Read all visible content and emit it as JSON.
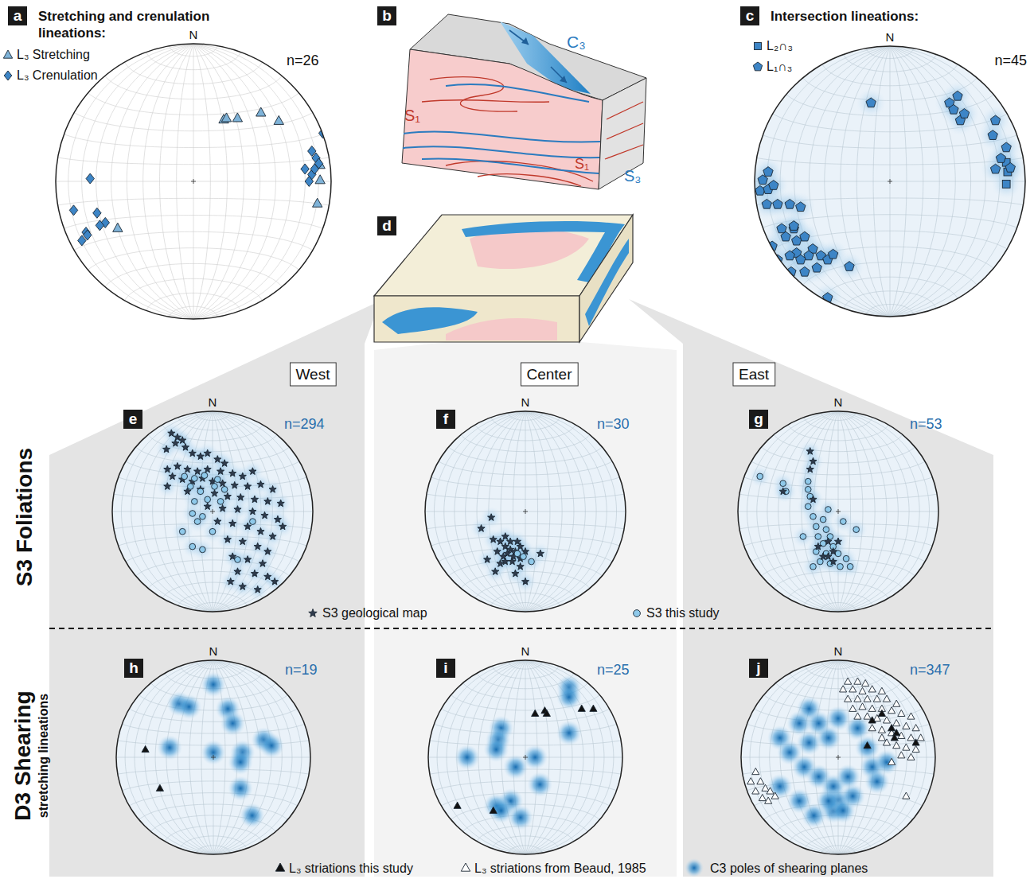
{
  "figure": {
    "rows": [
      {
        "label": "S3 Foliations"
      },
      {
        "label": "D3 Shearing",
        "sublabel": "stretching lineations"
      }
    ],
    "columns": [
      "West",
      "Center",
      "East"
    ],
    "legend_s3": [
      {
        "label": "S3 geological map",
        "marker": "star",
        "color": "#2f3b4c"
      },
      {
        "label": "S3 this study",
        "marker": "circle",
        "color": "#8fc9ea"
      }
    ],
    "legend_d3": [
      {
        "label": "L₃ striations this study",
        "marker": "triangle",
        "color": "#111111"
      },
      {
        "label": "L₃ striations from Beaud, 1985",
        "marker": "triangle",
        "color": "#ffffff"
      },
      {
        "label": "C3 poles of shearing planes",
        "marker": "density",
        "color": "#1f7fc4"
      }
    ]
  },
  "diagrams": {
    "b": {
      "letter": "b",
      "labels": {
        "c3": "C₃",
        "s1_top": "S₁",
        "s3": "S₃",
        "s1_bottom": "S₁"
      }
    },
    "d": {
      "letter": "d"
    }
  },
  "chart_data": [
    {
      "type": "scatter",
      "letter": "a",
      "title": "Stretching and crenulation lineations:",
      "north": "N",
      "n_label": "n=26",
      "xlim": [
        -1,
        1
      ],
      "ylim": [
        -1,
        1
      ],
      "tick_labels": false,
      "grid": true,
      "legend": "top-left",
      "series": [
        {
          "name": "L₃ Stretching",
          "marker": "triangle",
          "color": "#7fb3d8",
          "x": [
            0.22,
            0.24,
            0.32,
            0.49,
            0.62,
            0.92,
            0.92,
            0.9,
            -0.55
          ],
          "y": [
            0.45,
            0.46,
            0.46,
            0.5,
            0.44,
            0.12,
            0.01,
            -0.16,
            -0.34
          ]
        },
        {
          "name": "L₃ Crenulation",
          "marker": "diamond",
          "color": "#3d85c6",
          "x": [
            0.94,
            0.86,
            0.89,
            0.91,
            0.81,
            0.86,
            0.84,
            0.88,
            -0.75,
            -0.87,
            -0.7,
            -0.64,
            -0.68,
            -0.78,
            -0.81,
            -0.77
          ],
          "y": [
            0.35,
            0.22,
            0.17,
            0.13,
            0.09,
            0.05,
            0.0,
            0.09,
            0.02,
            -0.21,
            -0.23,
            -0.3,
            -0.32,
            -0.37,
            -0.43,
            -0.39
          ]
        }
      ]
    },
    {
      "type": "scatter",
      "letter": "c",
      "title": "Intersection lineations:",
      "north": "N",
      "n_label": "n=45",
      "xlim": [
        -1,
        1
      ],
      "ylim": [
        -1,
        1
      ],
      "tick_labels": false,
      "grid": true,
      "legend": "top-left",
      "series": [
        {
          "name": "L₂∩₃",
          "marker": "square",
          "color": "#3d85c6",
          "x": [
            0.86,
            0.87,
            0.86
          ],
          "y": [
            0.14,
            0.07,
            -0.02
          ]
        },
        {
          "name": "L₁∩₃",
          "marker": "pentagon",
          "color": "#3d85c6",
          "x": [
            -0.14,
            0.44,
            0.47,
            0.5,
            0.52,
            0.55,
            0.78,
            0.76,
            0.86,
            0.82,
            0.89,
            0.78,
            -0.94,
            -0.96,
            -0.9,
            -0.86,
            -0.91,
            -0.83,
            -0.9,
            -0.74,
            -0.66,
            -0.8,
            -0.71,
            -0.77,
            -0.69,
            -0.63,
            -0.57,
            -0.6,
            -0.69,
            -0.51,
            -0.54,
            -0.46,
            -0.74,
            -0.66,
            -0.83,
            -0.73,
            -0.46,
            -0.3,
            -0.71,
            -0.87,
            -0.63,
            -0.42
          ],
          "y": [
            0.58,
            0.58,
            0.53,
            0.63,
            0.45,
            0.5,
            0.45,
            0.34,
            0.25,
            0.17,
            0.1,
            0.09,
            0.01,
            -0.07,
            -0.06,
            -0.03,
            -0.17,
            -0.17,
            0.07,
            -0.17,
            -0.19,
            -0.35,
            -0.35,
            -0.41,
            -0.44,
            -0.41,
            -0.5,
            -0.55,
            -0.53,
            -0.55,
            -0.64,
            -0.58,
            -0.55,
            -0.58,
            -0.58,
            -0.67,
            -0.86,
            -0.63,
            -0.33,
            -0.48,
            -0.67,
            -0.54
          ]
        }
      ]
    },
    {
      "type": "scatter",
      "letter": "e",
      "north": "N",
      "n_label": "n=294",
      "xlim": [
        -1,
        1
      ],
      "ylim": [
        -1,
        1
      ],
      "tick_labels": false,
      "grid": true,
      "series": [
        {
          "marker": "star",
          "color": "#2f3b4c",
          "x": [
            -0.41,
            -0.35,
            -0.3,
            -0.37,
            -0.27,
            -0.46,
            -0.2,
            -0.12,
            -0.05,
            0.05,
            0.12,
            -0.45,
            -0.35,
            -0.25,
            -0.15,
            -0.05,
            0.08,
            0.2,
            0.3,
            0.4,
            -0.4,
            -0.3,
            -0.2,
            -0.1,
            0.0,
            0.1,
            0.22,
            0.35,
            0.48,
            0.6,
            -0.25,
            -0.12,
            0.02,
            0.15,
            0.28,
            0.42,
            0.55,
            0.68,
            -0.05,
            0.1,
            0.25,
            0.4,
            0.52,
            0.65,
            0.05,
            0.2,
            0.35,
            0.48,
            0.6,
            0.15,
            0.3,
            0.45,
            0.55,
            0.2,
            0.35,
            0.5,
            0.25,
            0.42,
            0.55,
            0.3,
            0.45,
            0.62,
            0.18,
            -0.45,
            0.7
          ],
          "y": [
            0.78,
            0.74,
            0.71,
            0.68,
            0.64,
            0.62,
            0.58,
            0.55,
            0.58,
            0.52,
            0.48,
            0.42,
            0.45,
            0.42,
            0.4,
            0.42,
            0.4,
            0.38,
            0.35,
            0.4,
            0.35,
            0.32,
            0.3,
            0.33,
            0.3,
            0.28,
            0.26,
            0.25,
            0.27,
            0.22,
            0.2,
            0.22,
            0.18,
            0.15,
            0.14,
            0.12,
            0.1,
            0.08,
            0.05,
            0.03,
            0.02,
            0.0,
            -0.04,
            -0.08,
            -0.1,
            -0.12,
            -0.15,
            -0.2,
            -0.25,
            -0.28,
            -0.3,
            -0.35,
            -0.4,
            -0.45,
            -0.48,
            -0.52,
            -0.6,
            -0.62,
            -0.65,
            -0.75,
            -0.78,
            -0.7,
            -0.7,
            0.25,
            -0.15
          ]
        },
        {
          "marker": "circle",
          "color": "#8fc9ea",
          "x": [
            -0.28,
            -0.18,
            -0.08,
            0.05,
            -0.22,
            -0.12,
            0.02,
            0.12,
            -0.18,
            -0.05,
            0.08,
            -0.2,
            -0.1,
            -0.3,
            -0.2,
            -0.1,
            0.25,
            0.4,
            -0.15,
            0.0
          ],
          "y": [
            0.35,
            0.33,
            0.36,
            0.32,
            0.25,
            0.2,
            0.25,
            0.22,
            0.1,
            0.12,
            0.1,
            -0.02,
            -0.05,
            -0.2,
            -0.35,
            -0.38,
            -0.48,
            -0.1,
            -0.1,
            -0.2
          ]
        }
      ]
    },
    {
      "type": "scatter",
      "letter": "f",
      "north": "N",
      "n_label": "n=30",
      "xlim": [
        -1,
        1
      ],
      "ylim": [
        -1,
        1
      ],
      "tick_labels": false,
      "grid": true,
      "series": [
        {
          "marker": "star",
          "color": "#2f3b4c",
          "x": [
            -0.34,
            -0.44,
            -0.25,
            -0.2,
            -0.15,
            -0.1,
            -0.18,
            -0.22,
            -0.12,
            -0.05,
            0.0,
            -0.28,
            -0.15,
            -0.08,
            -0.25,
            -0.05,
            0.15,
            -0.3,
            0.0,
            -0.1,
            -0.2,
            -0.13,
            -0.2,
            -0.05,
            -0.32,
            -0.38
          ],
          "y": [
            -0.06,
            -0.17,
            -0.3,
            -0.35,
            -0.38,
            -0.4,
            -0.42,
            -0.45,
            -0.45,
            -0.35,
            -0.4,
            -0.4,
            -0.3,
            -0.3,
            -0.52,
            -0.55,
            -0.42,
            -0.6,
            -0.7,
            -0.62,
            -0.25,
            -0.5,
            -0.5,
            -0.47,
            -0.28,
            -0.48
          ]
        },
        {
          "marker": "circle",
          "color": "#8fc9ea",
          "x": [
            -0.02,
            -0.08,
            0.06
          ],
          "y": [
            -0.45,
            -0.42,
            -0.5
          ]
        }
      ]
    },
    {
      "type": "scatter",
      "letter": "g",
      "north": "N",
      "n_label": "n=53",
      "xlim": [
        -1,
        1
      ],
      "ylim": [
        -1,
        1
      ],
      "tick_labels": false,
      "grid": true,
      "series": [
        {
          "marker": "circle",
          "color": "#8fc9ea",
          "x": [
            -0.78,
            -0.55,
            -0.52,
            -0.3,
            -0.3,
            -0.28,
            -0.3,
            -0.25,
            -0.15,
            -0.22,
            -0.12,
            -0.2,
            -0.08,
            -0.15,
            -0.05,
            -0.22,
            -0.12,
            0.0,
            -0.18,
            -0.08,
            0.02,
            0.12,
            -0.25,
            0.08,
            0.18,
            -0.35,
            0.05,
            -0.1
          ],
          "y": [
            0.35,
            0.28,
            0.2,
            0.3,
            0.22,
            0.15,
            0.05,
            -0.05,
            -0.08,
            -0.15,
            -0.18,
            -0.25,
            -0.25,
            -0.32,
            -0.35,
            -0.4,
            -0.42,
            -0.42,
            -0.5,
            -0.52,
            -0.55,
            -0.55,
            -0.55,
            -0.47,
            -0.18,
            -0.25,
            -0.1,
            0.02
          ]
        },
        {
          "marker": "star",
          "color": "#2f3b4c",
          "x": [
            -0.28,
            -0.25,
            -0.28,
            -0.55,
            -0.25,
            -0.1,
            -0.05,
            -0.15,
            0.0,
            -0.2,
            -0.1,
            -0.05
          ],
          "y": [
            0.42,
            0.5,
            0.6,
            0.2,
            0.12,
            -0.3,
            -0.4,
            -0.45,
            -0.3,
            -0.35,
            -0.45,
            -0.5
          ]
        }
      ]
    },
    {
      "type": "scatter",
      "letter": "h",
      "north": "N",
      "n_label": "n=19",
      "xlim": [
        -1,
        1
      ],
      "ylim": [
        -1,
        1
      ],
      "tick_labels": false,
      "grid": true,
      "series": [
        {
          "marker": "density",
          "color": "#1f7fc4",
          "x": [
            -0.35,
            -0.25,
            0.15,
            0.2,
            0.52,
            0.6,
            0.3,
            0.28,
            -0.45,
            0.28,
            0.4,
            0.0,
            0.0
          ],
          "y": [
            0.55,
            0.52,
            0.5,
            0.35,
            0.18,
            0.12,
            0.05,
            -0.05,
            0.1,
            -0.32,
            -0.6,
            0.05,
            0.75
          ]
        },
        {
          "marker": "triangle",
          "color": "#111111",
          "x": [
            -0.7,
            -0.55
          ],
          "y": [
            0.08,
            -0.32
          ]
        }
      ]
    },
    {
      "type": "scatter",
      "letter": "i",
      "north": "N",
      "n_label": "n=25",
      "xlim": [
        -1,
        1
      ],
      "ylim": [
        -1,
        1
      ],
      "tick_labels": false,
      "grid": true,
      "series": [
        {
          "marker": "density",
          "color": "#1f7fc4",
          "x": [
            -0.25,
            -0.28,
            -0.3,
            -0.6,
            0.45,
            0.45,
            -0.15,
            -0.3,
            -0.25,
            0.15,
            0.1,
            -0.1,
            0.45,
            -0.05
          ],
          "y": [
            0.3,
            0.18,
            0.08,
            0.0,
            0.72,
            0.62,
            -0.45,
            -0.5,
            -0.55,
            -0.28,
            0.0,
            -0.1,
            0.25,
            -0.62
          ]
        },
        {
          "marker": "triangle",
          "color": "#111111",
          "x": [
            0.1,
            0.2,
            0.22,
            0.58,
            0.7,
            -0.7,
            -0.33
          ],
          "y": [
            0.45,
            0.48,
            0.45,
            0.5,
            0.5,
            -0.5,
            -0.55
          ]
        }
      ]
    },
    {
      "type": "scatter",
      "letter": "j",
      "north": "N",
      "n_label": "n=347",
      "xlim": [
        -1,
        1
      ],
      "ylim": [
        -1,
        1
      ],
      "tick_labels": false,
      "grid": true,
      "series": [
        {
          "marker": "density",
          "color": "#1f7fc4",
          "x": [
            -0.3,
            -0.4,
            -0.2,
            -0.6,
            -0.5,
            -0.3,
            -0.1,
            0.0,
            -0.35,
            -0.2,
            -0.05,
            0.0,
            -0.05,
            0.05,
            -0.1,
            0.15,
            -0.25,
            0.1,
            0.35,
            0.3,
            0.4,
            0.5,
            -0.6,
            -0.4,
            0.2
          ],
          "y": [
            0.5,
            0.35,
            0.35,
            0.2,
            0.05,
            0.15,
            0.2,
            0.4,
            -0.1,
            -0.2,
            -0.3,
            -0.45,
            -0.55,
            -0.55,
            -0.45,
            -0.4,
            -0.6,
            -0.2,
            -0.1,
            0.1,
            -0.25,
            -0.05,
            -0.3,
            -0.45,
            0.3
          ]
        },
        {
          "marker": "triangle",
          "color": "#ffffff",
          "x": [
            0.1,
            0.2,
            0.28,
            0.05,
            0.15,
            0.25,
            0.35,
            0.45,
            0.1,
            0.2,
            0.3,
            0.4,
            0.5,
            0.6,
            0.15,
            0.25,
            0.35,
            0.45,
            0.55,
            0.65,
            0.75,
            0.2,
            0.3,
            0.4,
            0.5,
            0.6,
            0.7,
            0.8,
            0.35,
            0.45,
            0.55,
            0.65,
            0.75,
            0.85,
            0.5,
            0.6,
            0.7,
            0.8,
            0.65,
            0.75,
            0.55,
            0.45,
            0.7,
            -0.85,
            -0.9,
            -0.8,
            -0.75,
            -0.85,
            -0.7,
            -0.78,
            -0.65,
            -0.72
          ],
          "y": [
            0.78,
            0.78,
            0.76,
            0.7,
            0.7,
            0.68,
            0.7,
            0.68,
            0.6,
            0.6,
            0.6,
            0.6,
            0.6,
            0.55,
            0.5,
            0.52,
            0.5,
            0.5,
            0.48,
            0.45,
            0.42,
            0.42,
            0.42,
            0.4,
            0.38,
            0.35,
            0.32,
            0.3,
            0.3,
            0.28,
            0.25,
            0.22,
            0.2,
            0.2,
            0.15,
            0.12,
            0.1,
            0.08,
            0.02,
            0.0,
            -0.05,
            0.2,
            -0.4,
            -0.15,
            -0.25,
            -0.25,
            -0.32,
            -0.35,
            -0.35,
            -0.42,
            -0.4,
            -0.45
          ]
        },
        {
          "marker": "triangle",
          "color": "#111111",
          "x": [
            0.35,
            0.45,
            0.55,
            0.6,
            0.8,
            0.3,
            0.58
          ],
          "y": [
            0.38,
            0.45,
            0.3,
            0.25,
            0.15,
            0.12,
            0.2
          ]
        }
      ]
    }
  ]
}
